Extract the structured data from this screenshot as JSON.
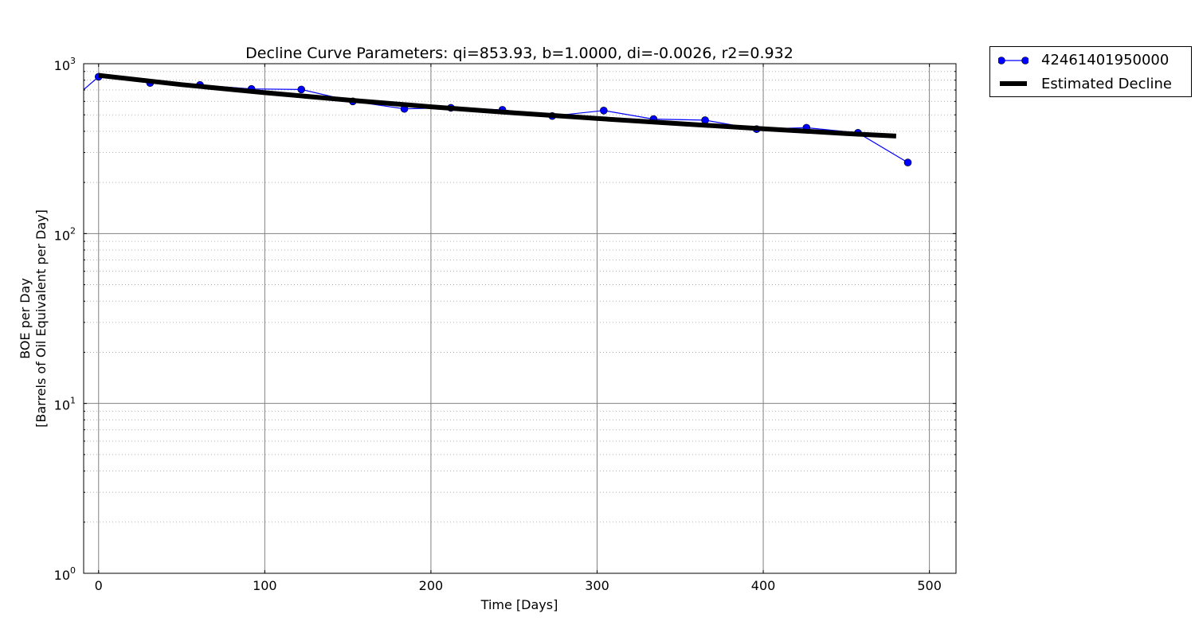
{
  "chart_data": {
    "type": "line",
    "title": "Decline Curve Parameters: qi=853.93, b=1.0000, di=-0.0026, r2=0.932",
    "xlabel": "Time [Days]",
    "ylabel_line1": "BOE per Day",
    "ylabel_line2": "[Barrels of Oil Equivalent per Day]",
    "xlim": [
      -9,
      516
    ],
    "ylim": [
      1,
      1000
    ],
    "yscale": "log",
    "x_ticks": [
      0,
      100,
      200,
      300,
      400,
      500
    ],
    "y_ticks": [
      {
        "value": 1,
        "base": "10",
        "exp": "0"
      },
      {
        "value": 10,
        "base": "10",
        "exp": "1"
      },
      {
        "value": 100,
        "base": "10",
        "exp": "2"
      },
      {
        "value": 1000,
        "base": "10",
        "exp": "3"
      }
    ],
    "grid": true,
    "legend_position": "outside-top-right",
    "series": [
      {
        "name": "42461401950000",
        "color": "#0000ff",
        "marker": "circle",
        "x": [
          -10,
          0,
          31,
          61,
          92,
          122,
          153,
          184,
          212,
          243,
          273,
          304,
          334,
          365,
          396,
          426,
          457,
          487
        ],
        "y": [
          690,
          838,
          770,
          750,
          710,
          705,
          600,
          542,
          550,
          535,
          492,
          530,
          472,
          465,
          412,
          420,
          392,
          262
        ]
      },
      {
        "name": "Estimated Decline",
        "color": "#000000",
        "line_width": 6,
        "x": [
          0,
          50,
          100,
          150,
          200,
          250,
          300,
          350,
          400,
          450,
          480
        ],
        "y": [
          854,
          753,
          675,
          611,
          558,
          513,
          476,
          443,
          414,
          388,
          375
        ]
      }
    ]
  }
}
